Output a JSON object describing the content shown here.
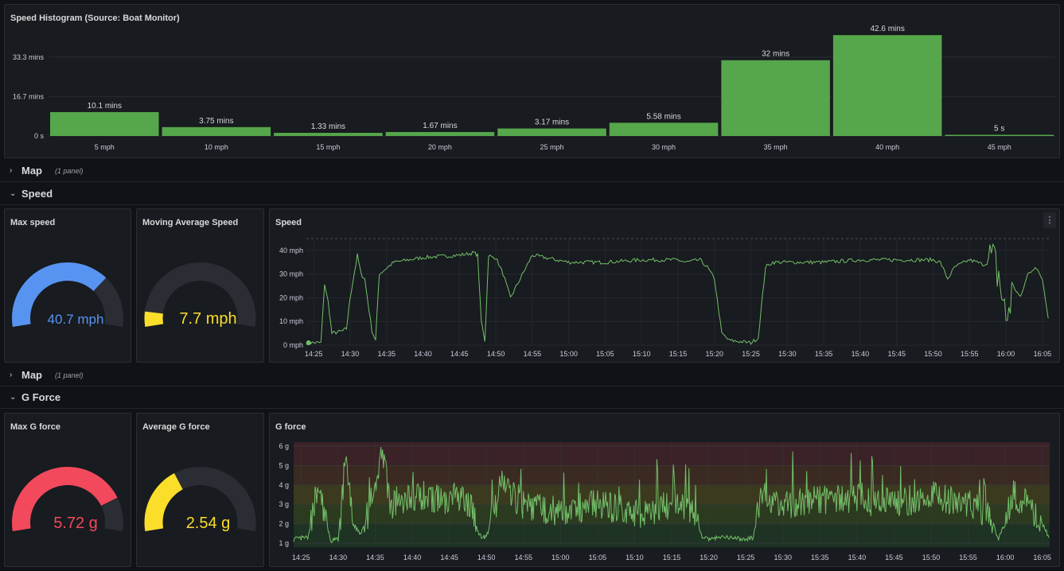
{
  "histogram": {
    "title": "Speed Histogram (Source: Boat Monitor)",
    "bar_color": "#56a64b",
    "y_ticks": [
      "33.3 mins",
      "16.7 mins",
      "0 s"
    ]
  },
  "rows": {
    "map1": {
      "title": "Map",
      "subtitle": "(1 panel)"
    },
    "speed": {
      "title": "Speed"
    },
    "map2": {
      "title": "Map",
      "subtitle": "(1 panel)"
    },
    "gforce": {
      "title": "G Force"
    }
  },
  "gauges": {
    "max_speed": {
      "title": "Max speed",
      "value_text": "40.7 mph",
      "fraction": 0.72,
      "color": "#5794f2"
    },
    "avg_speed": {
      "title": "Moving Average Speed",
      "value_text": "7.7 mph",
      "fraction": 0.08,
      "color": "#fade2a"
    },
    "max_g": {
      "title": "Max G force",
      "value_text": "5.72 g",
      "fraction": 0.82,
      "color": "#f2495c"
    },
    "avg_g": {
      "title": "Average G force",
      "value_text": "2.54 g",
      "fraction": 0.36,
      "color": "#fade2a"
    }
  },
  "speed_panel": {
    "title": "Speed",
    "menu_icon": "kebab-menu-icon",
    "line_color": "#73bf69",
    "x_ticks": [
      "14:25",
      "14:30",
      "14:35",
      "14:40",
      "14:45",
      "14:50",
      "14:55",
      "15:00",
      "15:05",
      "15:10",
      "15:15",
      "15:20",
      "15:25",
      "15:30",
      "15:35",
      "15:40",
      "15:45",
      "15:50",
      "15:55",
      "16:00",
      "16:05"
    ]
  },
  "gforce_panel": {
    "title": "G force",
    "line_color": "#73bf69",
    "threshold_colors": [
      "#1e3323",
      "#2c3a1f",
      "#3b3a1f",
      "#3a2a22",
      "#3a2226"
    ],
    "x_ticks": [
      "14:25",
      "14:30",
      "14:35",
      "14:40",
      "14:45",
      "14:50",
      "14:55",
      "15:00",
      "15:05",
      "15:10",
      "15:15",
      "15:20",
      "15:25",
      "15:30",
      "15:35",
      "15:40",
      "15:45",
      "15:50",
      "15:55",
      "16:00",
      "16:05"
    ]
  },
  "chart_data": [
    {
      "type": "bar",
      "title": "Speed Histogram (Source: Boat Monitor)",
      "categories": [
        "5 mph",
        "10 mph",
        "15 mph",
        "20 mph",
        "25 mph",
        "30 mph",
        "35 mph",
        "40 mph",
        "45 mph"
      ],
      "values": [
        10.1,
        3.75,
        1.33,
        1.67,
        3.17,
        5.58,
        32,
        42.6,
        0.083
      ],
      "value_labels": [
        "10.1 mins",
        "3.75 mins",
        "1.33 mins",
        "1.67 mins",
        "3.17 mins",
        "5.58 mins",
        "32 mins",
        "42.6 mins",
        "5 s"
      ],
      "ylabel": "",
      "ylim": [
        0,
        45
      ],
      "grid": true
    },
    {
      "type": "line",
      "title": "Speed",
      "y_ticks": [
        "40 mph",
        "30 mph",
        "20 mph",
        "10 mph",
        "0 mph"
      ],
      "ylim": [
        0,
        45
      ],
      "xlim": [
        "14:24",
        "16:06"
      ],
      "series": [
        {
          "x": [
            "14:24",
            "14:26",
            "14:26.5",
            "14:27",
            "14:27.5",
            "14:29",
            "14:29.5",
            "14:30",
            "14:31",
            "14:31.5",
            "14:32",
            "14:33",
            "14:33.5",
            "14:34",
            "14:36",
            "14:40",
            "14:45",
            "14:47",
            "14:47.5",
            "14:48",
            "14:48.5",
            "14:49",
            "14:49.5",
            "14:50",
            "14:51",
            "14:52",
            "14:55",
            "15:00",
            "15:05",
            "15:10",
            "15:15",
            "15:16",
            "15:18",
            "15:19",
            "15:20",
            "15:21",
            "15:22",
            "15:25",
            "15:26",
            "15:27",
            "15:28",
            "15:30",
            "15:35",
            "15:40",
            "15:45",
            "15:50",
            "15:51",
            "15:52",
            "15:53",
            "15:55",
            "15:56",
            "15:57",
            "15:58",
            "15:59",
            "16:00",
            "16:01",
            "16:02",
            "16:03",
            "16:04",
            "16:05",
            "16:06"
          ],
          "y": [
            1,
            1,
            26,
            18,
            5,
            6,
            7,
            20,
            38,
            30,
            28,
            6,
            2,
            30,
            35,
            37,
            38,
            39,
            38,
            10,
            2,
            38,
            37,
            37,
            30,
            20,
            38,
            35,
            35,
            36,
            36,
            35,
            36,
            33,
            28,
            5,
            2,
            1,
            3,
            33,
            35,
            35,
            35,
            36,
            36,
            36,
            35,
            28,
            33,
            36,
            35,
            34,
            36,
            30,
            10,
            25,
            20,
            30,
            33,
            28,
            8
          ]
        }
      ]
    },
    {
      "type": "line",
      "title": "G force",
      "y_ticks": [
        "6 g",
        "5 g",
        "4 g",
        "3 g",
        "2 g",
        "1 g"
      ],
      "ylim": [
        0.8,
        6.2
      ],
      "xlim": [
        "14:24",
        "16:06"
      ],
      "series": [
        {
          "x": [
            "14:24",
            "14:26",
            "14:27",
            "14:28",
            "14:29",
            "14:30",
            "14:31",
            "14:32",
            "14:33",
            "14:34",
            "14:35",
            "14:36",
            "14:37",
            "14:40",
            "14:45",
            "14:48",
            "14:49",
            "14:50",
            "14:52",
            "14:55",
            "15:00",
            "15:05",
            "15:10",
            "15:15",
            "15:18",
            "15:19",
            "15:20",
            "15:22",
            "15:25",
            "15:26",
            "15:27",
            "15:30",
            "15:35",
            "15:40",
            "15:45",
            "15:50",
            "15:55",
            "15:58",
            "15:59",
            "16:00",
            "16:01",
            "16:03",
            "16:05",
            "16:06"
          ],
          "y": [
            1.2,
            1.3,
            3.5,
            2.8,
            1.1,
            1.2,
            5,
            2,
            1.5,
            2.5,
            4,
            5.8,
            3,
            3.5,
            3.2,
            3.1,
            1.4,
            1.3,
            4,
            3,
            2.6,
            3,
            2.5,
            3,
            2.8,
            1.4,
            1.2,
            1.3,
            1.2,
            1.3,
            3.4,
            3,
            3.2,
            3.3,
            3,
            3.5,
            3,
            2.5,
            1.2,
            2,
            3.5,
            3,
            2,
            1.2
          ]
        }
      ]
    }
  ]
}
